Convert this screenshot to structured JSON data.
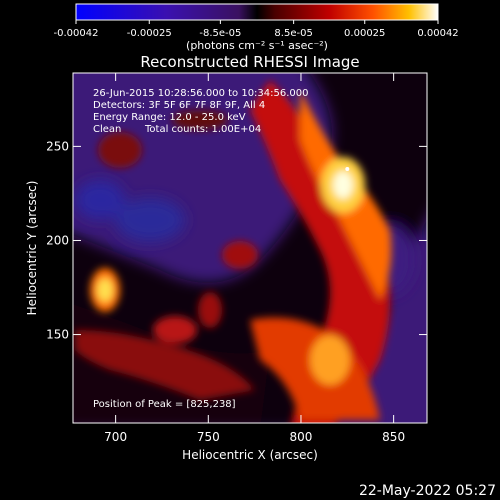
{
  "chart_data": {
    "type": "heatmap",
    "title": "Reconstructed RHESSI Image",
    "xlabel": "Heliocentric X (arcsec)",
    "ylabel": "Heliocentric Y (arcsec)",
    "xlim": [
      677,
      868
    ],
    "ylim": [
      103,
      289
    ],
    "xticks": [
      700,
      750,
      800,
      850
    ],
    "yticks": [
      150,
      200,
      250
    ],
    "colorbar": {
      "unit_label": "(photons cm⁻² s⁻¹ asec⁻²)",
      "range": [
        -0.00042,
        0.00042
      ],
      "tick_labels": [
        "-0.00042",
        "-0.00025",
        "-8.5e-05",
        "8.5e-05",
        "0.00025",
        "0.00042"
      ],
      "tick_values": [
        -0.00042,
        -0.00025,
        -8.5e-05,
        8.5e-05,
        0.00025,
        0.00042
      ]
    },
    "annotations": [
      "26-Jun-2015 10:28:56.000 to 10:34:56.000",
      "Detectors: 3F 5F 6F 7F 8F 9F, All 4",
      "Energy Range: 12.0 - 25.0 keV",
      "Clean",
      "Total counts: 1.00E+04"
    ],
    "peak_label": "Position of Peak = [825,238]",
    "peak": {
      "x": 825,
      "y": 238
    },
    "timestamp": "22-May-2022 05:27",
    "colors": {
      "background": "#000000",
      "text": "#ffffff"
    }
  }
}
